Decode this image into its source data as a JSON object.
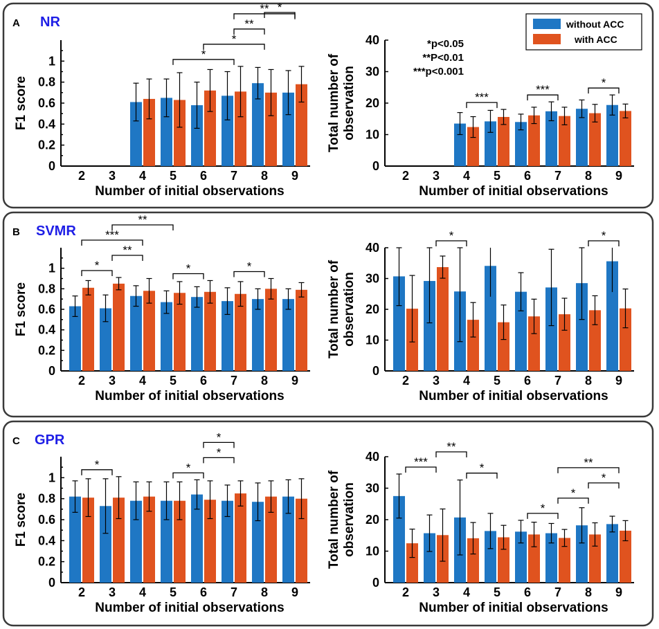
{
  "colors": {
    "without": "#1f77c4",
    "with": "#e0531f",
    "panel_name": "#1e1ee6"
  },
  "legend": {
    "without": "without ACC",
    "with": "with ACC"
  },
  "significance_key": [
    "*p<0.05",
    "**P<0.01",
    "***p<0.001"
  ],
  "panels": [
    {
      "id": "A",
      "name": "NR"
    },
    {
      "id": "B",
      "name": "SVMR"
    },
    {
      "id": "C",
      "name": "GPR"
    }
  ],
  "chart_data": [
    {
      "type": "bar",
      "panel": "A",
      "metric": "f1",
      "categories": [
        "2",
        "3",
        "4",
        "5",
        "6",
        "7",
        "8",
        "9"
      ],
      "ylabel": "F1 score",
      "xlabel": "Number of initial observations",
      "ylim": [
        0,
        1.2
      ],
      "yticks": [
        "0",
        "0.2",
        "0.4",
        "0.6",
        "0.8",
        "1"
      ],
      "series": [
        {
          "name": "without ACC",
          "values": [
            null,
            null,
            0.61,
            0.65,
            0.58,
            0.67,
            0.79,
            0.7
          ],
          "err": [
            null,
            null,
            0.18,
            0.18,
            0.22,
            0.23,
            0.15,
            0.21
          ]
        },
        {
          "name": "with ACC",
          "values": [
            null,
            null,
            0.64,
            0.63,
            0.72,
            0.71,
            0.7,
            0.78
          ],
          "err": [
            null,
            null,
            0.19,
            0.26,
            0.2,
            0.24,
            0.22,
            0.17
          ]
        }
      ],
      "brackets": [
        {
          "from": "5",
          "to": "7",
          "label": "*"
        },
        {
          "from": "6",
          "to": "8",
          "label": "*"
        },
        {
          "from": "7",
          "to": "8",
          "label": "**"
        },
        {
          "from": "7",
          "to": "9",
          "label": "**"
        },
        {
          "from": "8",
          "to": "9",
          "label": "*"
        }
      ]
    },
    {
      "type": "bar",
      "panel": "A",
      "metric": "obs",
      "categories": [
        "2",
        "3",
        "4",
        "5",
        "6",
        "7",
        "8",
        "9"
      ],
      "ylabel": "Total number of observation",
      "xlabel": "Number of initial observations",
      "ylim": [
        0,
        40
      ],
      "yticks": [
        "0",
        "10",
        "20",
        "30",
        "40"
      ],
      "series": [
        {
          "name": "without ACC",
          "values": [
            null,
            null,
            13.5,
            14.2,
            14.0,
            17.4,
            18.2,
            19.4
          ],
          "err": [
            null,
            null,
            3.5,
            3.5,
            2.5,
            3.0,
            2.8,
            3.2
          ]
        },
        {
          "name": "with ACC",
          "values": [
            null,
            null,
            12.4,
            15.6,
            16.1,
            15.9,
            16.8,
            17.5
          ],
          "err": [
            null,
            null,
            3.3,
            2.4,
            2.6,
            2.8,
            2.8,
            2.2
          ]
        }
      ],
      "brackets": [
        {
          "from": "4",
          "to": "5",
          "label": "***"
        },
        {
          "from": "6",
          "to": "7",
          "label": "***"
        },
        {
          "from": "8",
          "to": "9",
          "label": "*"
        }
      ]
    },
    {
      "type": "bar",
      "panel": "B",
      "metric": "f1",
      "categories": [
        "2",
        "3",
        "4",
        "5",
        "6",
        "7",
        "8",
        "9"
      ],
      "ylabel": "F1 score",
      "xlabel": "Number of initial observations",
      "ylim": [
        0,
        1.2
      ],
      "yticks": [
        "0",
        "0.2",
        "0.4",
        "0.6",
        "0.8",
        "1"
      ],
      "series": [
        {
          "name": "without ACC",
          "values": [
            0.63,
            0.61,
            0.73,
            0.67,
            0.72,
            0.68,
            0.7,
            0.7
          ],
          "err": [
            0.1,
            0.13,
            0.1,
            0.11,
            0.1,
            0.13,
            0.1,
            0.1
          ]
        },
        {
          "name": "with ACC",
          "values": [
            0.81,
            0.85,
            0.78,
            0.76,
            0.77,
            0.75,
            0.8,
            0.79
          ],
          "err": [
            0.07,
            0.06,
            0.12,
            0.11,
            0.11,
            0.12,
            0.1,
            0.07
          ]
        }
      ],
      "brackets": [
        {
          "from": "2",
          "to": "3",
          "label": "*"
        },
        {
          "from": "3",
          "to": "4",
          "label": "**"
        },
        {
          "from": "2",
          "to": "4",
          "label": "***"
        },
        {
          "from": "3",
          "to": "5",
          "label": "**"
        },
        {
          "from": "5",
          "to": "6",
          "label": "*"
        },
        {
          "from": "7",
          "to": "8",
          "label": "*"
        }
      ]
    },
    {
      "type": "bar",
      "panel": "B",
      "metric": "obs",
      "categories": [
        "2",
        "3",
        "4",
        "5",
        "6",
        "7",
        "8",
        "9"
      ],
      "ylabel": "Total number of observation",
      "xlabel": "Number of initial observations",
      "ylim": [
        0,
        40
      ],
      "yticks": [
        "0",
        "10",
        "20",
        "30",
        "40"
      ],
      "series": [
        {
          "name": "without ACC",
          "values": [
            30.7,
            29.2,
            25.8,
            34.1,
            25.7,
            27.1,
            28.5,
            35.6
          ],
          "err": [
            9.5,
            13.6,
            16.3,
            0,
            6.2,
            12.4,
            11.8,
            0
          ]
        },
        {
          "name": "with ACC",
          "values": [
            20.2,
            33.7,
            16.6,
            15.8,
            17.7,
            18.4,
            19.7,
            20.3
          ],
          "err": [
            10.8,
            3.6,
            5.6,
            5.6,
            5.6,
            5.2,
            4.7,
            6.3
          ]
        }
      ],
      "brackets": [
        {
          "from": "3",
          "to": "4",
          "label": "*"
        },
        {
          "from": "8",
          "to": "9",
          "label": "*"
        }
      ]
    },
    {
      "type": "bar",
      "panel": "C",
      "metric": "f1",
      "categories": [
        "2",
        "3",
        "4",
        "5",
        "6",
        "7",
        "8",
        "9"
      ],
      "ylabel": "F1 score",
      "xlabel": "Number of initial observations",
      "ylim": [
        0,
        1.2
      ],
      "yticks": [
        "0",
        "0.2",
        "0.4",
        "0.6",
        "0.8",
        "1"
      ],
      "series": [
        {
          "name": "without ACC",
          "values": [
            0.82,
            0.73,
            0.78,
            0.78,
            0.84,
            0.78,
            0.77,
            0.82
          ],
          "err": [
            0.15,
            0.26,
            0.18,
            0.18,
            0.14,
            0.15,
            0.18,
            0.16
          ]
        },
        {
          "name": "with ACC",
          "values": [
            0.81,
            0.81,
            0.82,
            0.78,
            0.79,
            0.85,
            0.82,
            0.8
          ],
          "err": [
            0.18,
            0.2,
            0.14,
            0.18,
            0.18,
            0.12,
            0.15,
            0.19
          ]
        }
      ],
      "brackets": [
        {
          "from": "2",
          "to": "3",
          "label": "*"
        },
        {
          "from": "5",
          "to": "6",
          "label": "*"
        },
        {
          "from": "6",
          "to": "7",
          "label": "*"
        },
        {
          "from": "6",
          "to": "7",
          "label": "*"
        }
      ]
    },
    {
      "type": "bar",
      "panel": "C",
      "metric": "obs",
      "categories": [
        "2",
        "3",
        "4",
        "5",
        "6",
        "7",
        "8",
        "9"
      ],
      "ylabel": "Total number of observation",
      "xlabel": "Number of initial observations",
      "ylim": [
        0,
        40
      ],
      "yticks": [
        "0",
        "10",
        "20",
        "30",
        "40"
      ],
      "series": [
        {
          "name": "without ACC",
          "values": [
            27.5,
            15.7,
            20.7,
            16.4,
            16.2,
            15.7,
            18.2,
            18.6
          ],
          "err": [
            7.0,
            5.8,
            11.9,
            5.6,
            3.6,
            3.1,
            5.6,
            2.5
          ]
        },
        {
          "name": "with ACC",
          "values": [
            12.5,
            15.1,
            14.1,
            14.4,
            15.3,
            14.2,
            15.3,
            16.5
          ],
          "err": [
            4.5,
            8.3,
            5.0,
            3.8,
            3.9,
            2.7,
            3.7,
            3.2
          ]
        }
      ],
      "brackets": [
        {
          "from": "2",
          "to": "3",
          "label": "***"
        },
        {
          "from": "3",
          "to": "4",
          "label": "**"
        },
        {
          "from": "4",
          "to": "5",
          "label": "*"
        },
        {
          "from": "6",
          "to": "7",
          "label": "*"
        },
        {
          "from": "7",
          "to": "8",
          "label": "*"
        },
        {
          "from": "8",
          "to": "9",
          "label": "*"
        },
        {
          "from": "7",
          "to": "9",
          "label": "**"
        }
      ]
    }
  ]
}
